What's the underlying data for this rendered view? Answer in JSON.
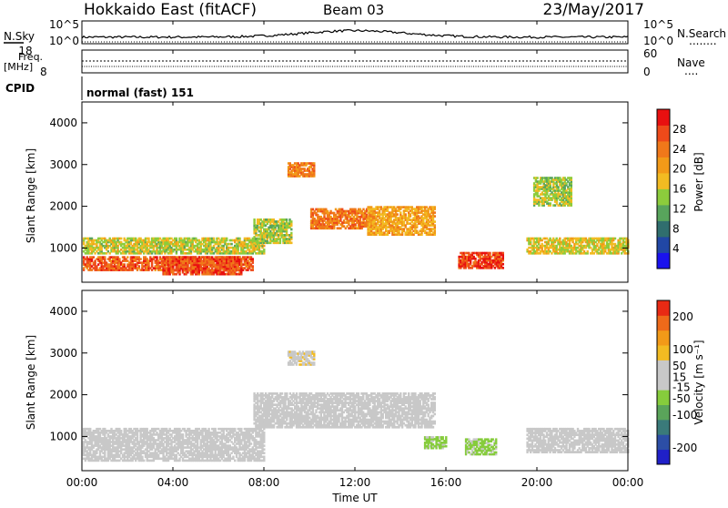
{
  "header": {
    "station": "Hokkaido East (fitACF)",
    "beam": "Beam 03",
    "date": "23/May/2017"
  },
  "nsky_panel": {
    "left_label": "N.Sky",
    "right_label": "N.Search",
    "left_ticks": [
      "10^5",
      "10^0"
    ],
    "right_ticks": [
      "10^5",
      "10^0"
    ],
    "right_legend_line": "........"
  },
  "freq_panel": {
    "left_label_1": "Freq.",
    "left_label_2": "[MHz]",
    "left_ticks": [
      "18",
      "8"
    ],
    "right_label": "Nave",
    "right_ticks": [
      "60",
      "0"
    ],
    "right_legend_line": "...."
  },
  "cpid_panel": {
    "label": "CPID",
    "text": "normal (fast) 151"
  },
  "power_panel": {
    "ylabel": "Slant Range [km]",
    "ytick_labels": [
      "4000",
      "3000",
      "2000",
      "1000"
    ],
    "colorbar_label": "Power [dB]",
    "colorbar_ticks": [
      "28",
      "24",
      "20",
      "16",
      "12",
      "8",
      "4"
    ],
    "colors": [
      "#1a12ee",
      "#2147a5",
      "#306e6e",
      "#58a45c",
      "#8ccc3c",
      "#f2bb22",
      "#f29a18",
      "#f0781a",
      "#ee4a1a",
      "#e81010"
    ]
  },
  "velocity_panel": {
    "ylabel": "Slant Range [km]",
    "ytick_labels": [
      "4000",
      "3000",
      "2000",
      "1000"
    ],
    "colorbar_label": "Velocity [m s⁻¹]",
    "colorbar_ticks": [
      "200",
      "100",
      "50",
      "15",
      "-15",
      "-50",
      "-100",
      "-200"
    ],
    "colors": [
      "#2020c8",
      "#2c4ea6",
      "#3a7a7a",
      "#5aa45a",
      "#86cc3c",
      "#c8c8c8",
      "#c8c8c8",
      "#f2bb22",
      "#f29a18",
      "#ee6a1a",
      "#e82a14"
    ]
  },
  "xaxis": {
    "tick_labels": [
      "00:00",
      "04:00",
      "08:00",
      "12:00",
      "16:00",
      "20:00",
      "00:00"
    ],
    "label": "Time UT"
  },
  "chart_data": [
    {
      "type": "heatmap",
      "title": "",
      "xlabel": "Time UT",
      "ylabel": "Slant Range [km]",
      "xlim": [
        0,
        24
      ],
      "ylim": [
        180,
        4500
      ],
      "colorbar": {
        "label": "Power [dB]",
        "min": 0,
        "max": 32,
        "ticks": [
          4,
          8,
          12,
          16,
          20,
          24,
          28
        ]
      },
      "regions": [
        {
          "t": [
            0,
            7.5
          ],
          "range": [
            450,
            800
          ],
          "value": 26
        },
        {
          "t": [
            0,
            8.0
          ],
          "range": [
            850,
            1250
          ],
          "value": 16
        },
        {
          "t": [
            3.5,
            7.0
          ],
          "range": [
            350,
            800
          ],
          "value": 27
        },
        {
          "t": [
            7.5,
            9.2
          ],
          "range": [
            1100,
            1700
          ],
          "value": 15
        },
        {
          "t": [
            9.0,
            10.2
          ],
          "range": [
            2700,
            3050
          ],
          "value": 23
        },
        {
          "t": [
            10.0,
            12.8
          ],
          "range": [
            1450,
            1950
          ],
          "value": 24
        },
        {
          "t": [
            12.5,
            15.5
          ],
          "range": [
            1300,
            2000
          ],
          "value": 20
        },
        {
          "t": [
            16.5,
            18.5
          ],
          "range": [
            500,
            900
          ],
          "value": 28
        },
        {
          "t": [
            19.5,
            24.0
          ],
          "range": [
            850,
            1250
          ],
          "value": 17
        },
        {
          "t": [
            19.8,
            21.5
          ],
          "range": [
            2000,
            2700
          ],
          "value": 15
        }
      ]
    },
    {
      "type": "heatmap",
      "title": "",
      "xlabel": "Time UT",
      "ylabel": "Slant Range [km]",
      "xlim": [
        0,
        24
      ],
      "ylim": [
        180,
        4500
      ],
      "colorbar": {
        "label": "Velocity [m s⁻¹]",
        "min": -250,
        "max": 250,
        "ticks": [
          -200,
          -100,
          -50,
          -15,
          15,
          50,
          100,
          200
        ]
      },
      "regions": [
        {
          "t": [
            0,
            8.0
          ],
          "range": [
            400,
            1200
          ],
          "value": 0
        },
        {
          "t": [
            7.5,
            15.5
          ],
          "range": [
            1200,
            2050
          ],
          "value": 0
        },
        {
          "t": [
            9.0,
            10.2
          ],
          "range": [
            2700,
            3050
          ],
          "value": 60
        },
        {
          "t": [
            15.0,
            16.0
          ],
          "range": [
            700,
            1000
          ],
          "value": -30
        },
        {
          "t": [
            16.8,
            18.2
          ],
          "range": [
            550,
            950
          ],
          "value": -30
        },
        {
          "t": [
            19.5,
            24.0
          ],
          "range": [
            600,
            1200
          ],
          "value": 0
        }
      ]
    }
  ]
}
